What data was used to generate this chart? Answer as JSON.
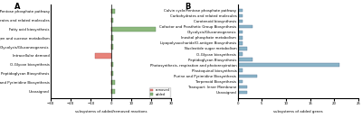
{
  "panel_A": {
    "categories": [
      "Calvin cycle/Pentose phosphate pathway",
      "Carbohydrates and related molecules",
      "Fatty acid biosynthesis",
      "Glycogen and sucrose metabolism",
      "Glycolysis/Gluconeogenesis",
      "Intracellular demand",
      "O-Glycan biosynthesis",
      "Peptidoglycan Biosynthesis",
      "Purine and Pyrimidine Biosynthesis",
      "Unassigned"
    ],
    "added": [
      2,
      1,
      22,
      1,
      1,
      0,
      1,
      1,
      2,
      2
    ],
    "removed": [
      0,
      0,
      0,
      0,
      0,
      -8,
      0,
      0,
      0,
      0
    ],
    "added_color": "#8cb87c",
    "removed_color": "#e8837a",
    "added_edge": "#5a8a5a",
    "removed_edge": "#b05050",
    "xlabel": "subsystems of added/removed reactions",
    "xlim": [
      -30,
      30
    ],
    "xticks": [
      -30,
      -20,
      -10,
      0,
      10,
      20,
      30
    ]
  },
  "panel_B": {
    "categories": [
      "Calvin cycle/Pentose phosphate pathway",
      "Carbohydrates and related molecules",
      "Carotenoid biosynthesis",
      "Cofactor and Prosthetic Group Biosynthesis",
      "Glycolysis/Gluconeogenesis",
      "Inositol phosphate metabolism",
      "Lipopolysaccharide/O-antigen Biosynthesis",
      "Nucleotide sugar metabolism",
      "O-Glycan biosynthesis",
      "Peptidoglycan Biosynthesis",
      "Photosynthesis, respiration and photorespiration",
      "Plastoquinol biosynthesis",
      "Purine and Pyrimidine Biosynthesis",
      "Terpenoid Biosynthesis",
      "Transport: Inner Membrane",
      "Unassigned"
    ],
    "values": [
      1,
      1,
      1,
      3,
      1,
      1,
      1,
      2,
      1,
      3,
      21,
      1,
      4,
      1,
      2,
      2
    ],
    "bar_color": "#8ab4c8",
    "bar_edge": "#5a7a9a",
    "xlabel": "subsystems of added genes",
    "xlim": [
      0,
      25
    ],
    "xticks": [
      0,
      5,
      10,
      15,
      20,
      25
    ]
  },
  "title_A": "A",
  "title_B": "B",
  "legend_removed": "removed",
  "legend_added": "added",
  "label_fontsize": 2.8,
  "tick_fontsize": 2.8,
  "xlabel_fontsize": 2.8,
  "bar_height": 0.55,
  "bar_linewidth": 0.3
}
